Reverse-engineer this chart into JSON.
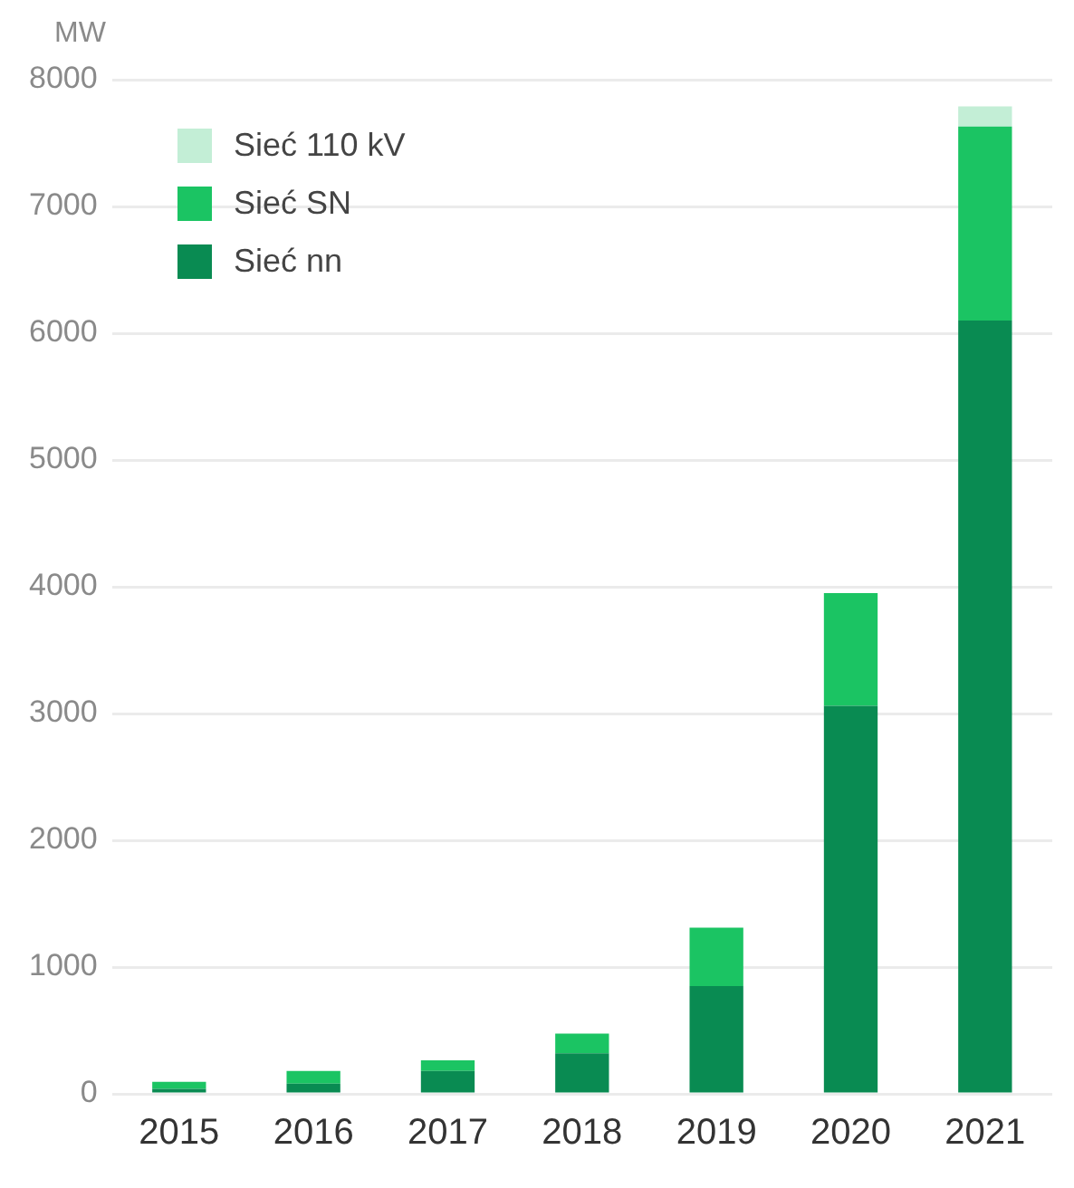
{
  "chart_data": {
    "type": "bar",
    "stacked": true,
    "ylabel": "MW",
    "categories": [
      "2015",
      "2016",
      "2017",
      "2018",
      "2019",
      "2020",
      "2021"
    ],
    "series": [
      {
        "name": "Sieć nn",
        "color": "#098b52",
        "values": [
          40,
          80,
          180,
          320,
          850,
          3060,
          6100
        ]
      },
      {
        "name": "Sieć SN",
        "color": "#1bc463",
        "values": [
          55,
          100,
          85,
          155,
          460,
          890,
          1530
        ]
      },
      {
        "name": "Sieć 110 kV",
        "color": "#c3eed6",
        "values": [
          0,
          0,
          0,
          0,
          0,
          0,
          160
        ]
      }
    ],
    "ylim": [
      0,
      8000
    ],
    "yticks": [
      0,
      1000,
      2000,
      3000,
      4000,
      5000,
      6000,
      7000,
      8000
    ],
    "grid": "y",
    "legend": "top left"
  }
}
